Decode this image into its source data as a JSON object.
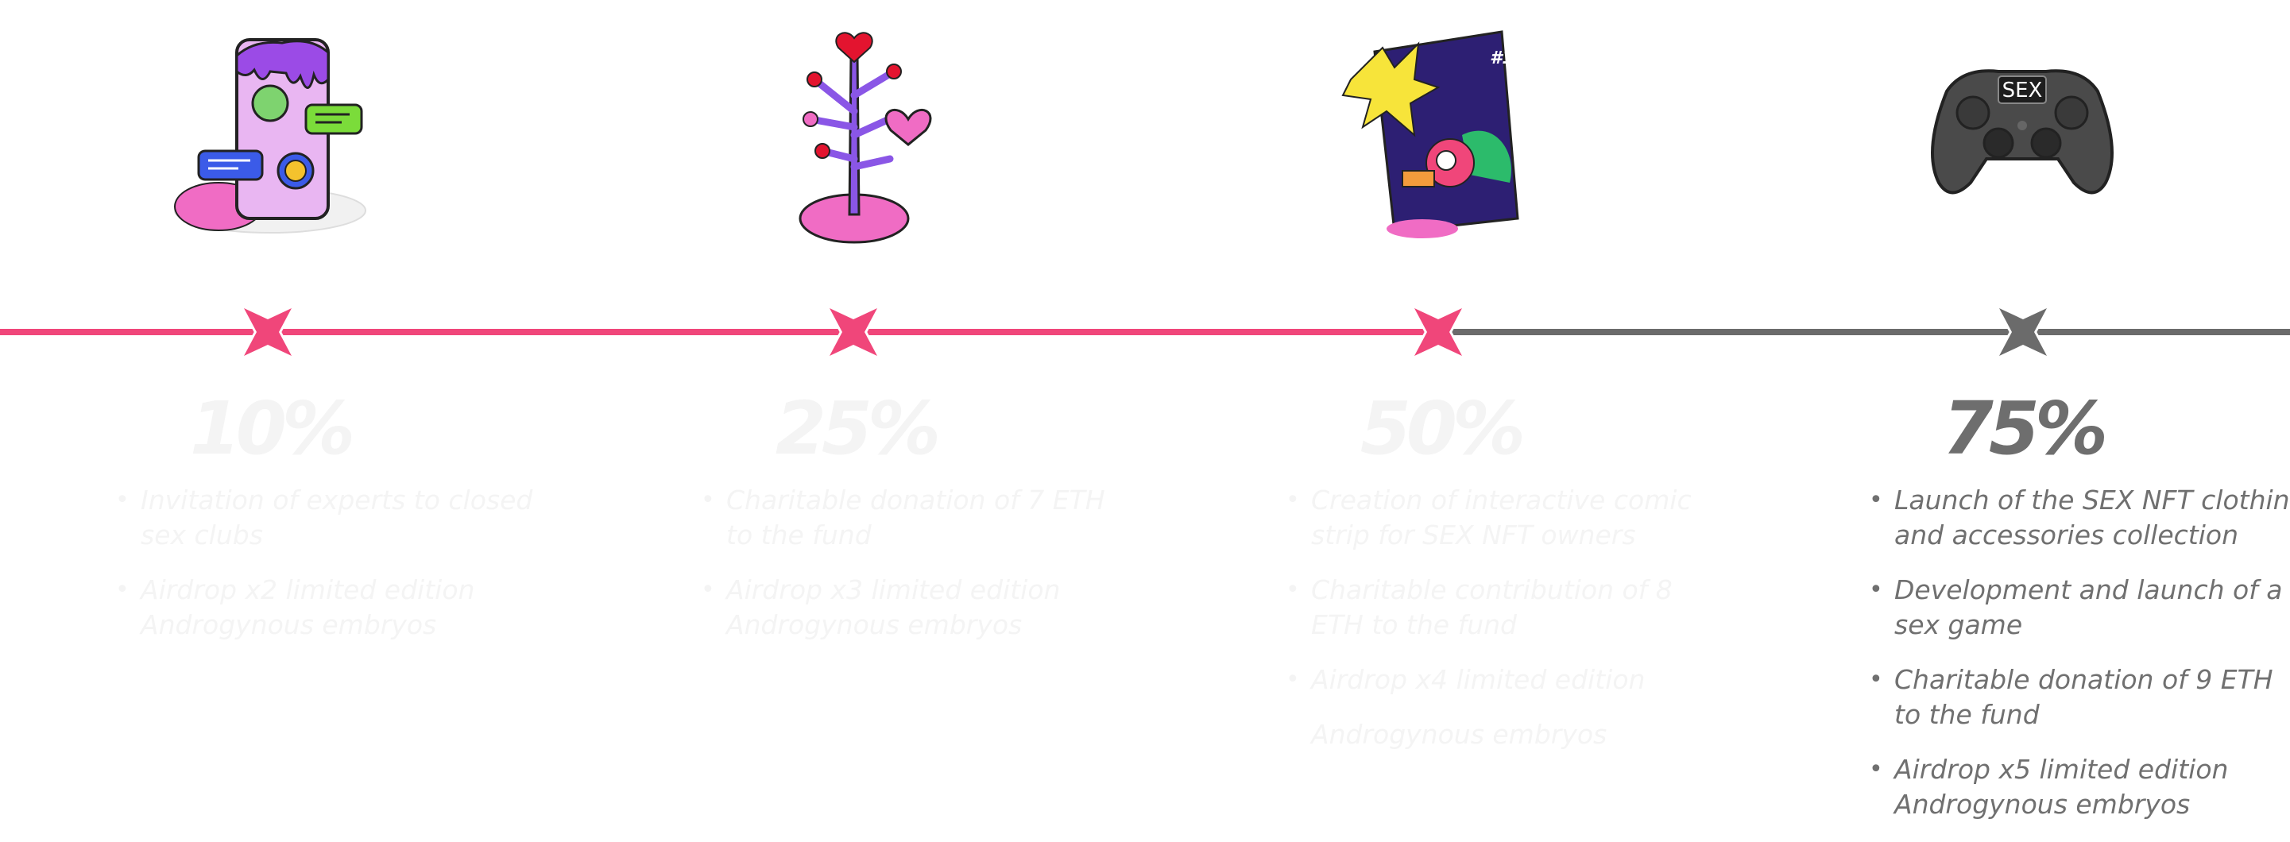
{
  "timeline": {
    "done_color": "#f0467a",
    "pending_color": "#6b6b6b"
  },
  "milestones": [
    {
      "percent": "10%",
      "state": "faded",
      "illustration": "phone-chat-illustration",
      "items": [
        "Invitation of experts to closed sex clubs",
        "Airdrop x2 limited edition Androgynous embryos"
      ]
    },
    {
      "percent": "25%",
      "state": "faded",
      "illustration": "heart-tree-illustration",
      "items": [
        "Charitable donation of 7 ETH to the fund",
        " Airdrop x3 limited edition Androgynous embryos"
      ]
    },
    {
      "percent": "50%",
      "state": "faded",
      "illustration": "comic-book-illustration",
      "comic_label": "#1",
      "items": [
        "Creation of interactive comic strip for SEX NFT owners",
        "Charitable contribution of 8 ETH to the fund",
        "Airdrop x4 limited edition",
        "Androgynous embryos"
      ]
    },
    {
      "percent": "75%",
      "state": "active",
      "illustration": "game-controller-illustration",
      "controller_label": "SEX",
      "items": [
        "Launch of the SEX NFT clothing and accessories collection",
        "Development and launch of a sex game",
        "Charitable donation of 9 ETH to the fund",
        "Airdrop x5 limited edition Androgynous embryos"
      ]
    }
  ]
}
